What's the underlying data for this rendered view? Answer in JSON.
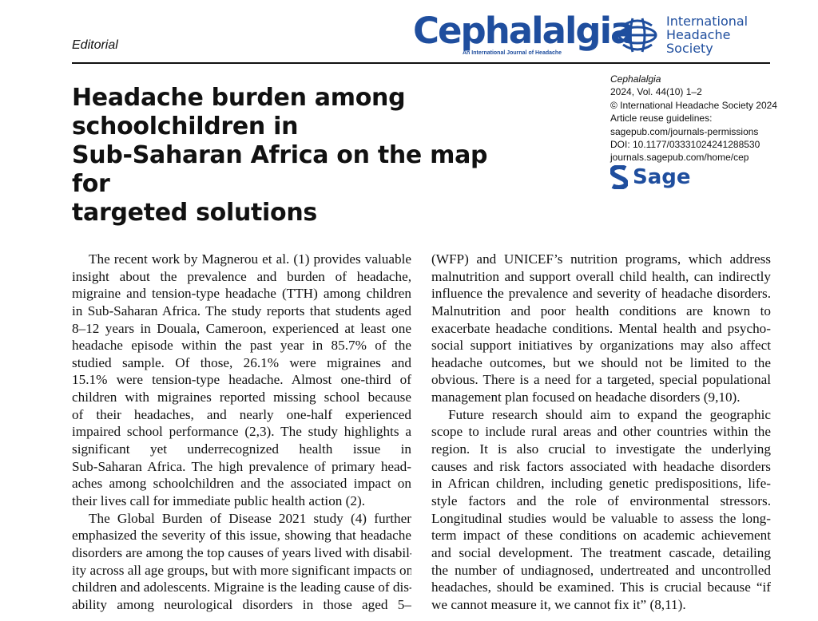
{
  "header": {
    "section": "Editorial",
    "journal_logo": "Cephalalgia",
    "journal_tagline": "An International Journal of Headache",
    "society_logo": "International Headache Society",
    "publisher_logo": "Sage",
    "brand_color": "#1f4e9e"
  },
  "title": [
    "Headache burden among schoolchildren in",
    "Sub-Saharan Africa on the map for",
    "targeted solutions"
  ],
  "meta": [
    "Cephalalgia",
    "2024, Vol. 44(10) 1–2",
    "© International Headache Society 2024",
    "Article reuse guidelines:",
    "sagepub.com/journals-permissions",
    "DOI: 10.1177/03331024241288530",
    "journals.sagepub.com/home/cep"
  ],
  "columns": [
    [
      [
        "The recent work by Magnerou et al. (1) provides valuable",
        "insight about the prevalence and burden of headache,",
        "migraine and tension-type headache (TTH) among children",
        "in Sub-Saharan Africa. The study reports that students aged",
        "8–12 years in Douala, Cameroon, experienced at least one",
        "headache episode within the past year in 85.7% of the",
        "studied sample. Of those, 26.1% were migraines and",
        "15.1% were tension-type headache. Almost one-third of",
        "children with migraines reported missing school because",
        "of their headaches, and nearly one-half experienced",
        "impaired school performance (2,3). The study highlights a",
        "significant yet underrecognized health issue in",
        "Sub-Saharan Africa. The high prevalence of primary head-",
        "aches among schoolchildren and the associated impact on",
        "their lives call for immediate public health action (2)."
      ],
      [
        "The Global Burden of Disease 2021 study (4) further",
        "emphasized the severity of this issue, showing that headache",
        "disorders are among the top causes of years lived with disabil-",
        "ity across all age groups, but with more significant impacts on",
        "children and adolescents. Migraine is the leading cause of dis-",
        "ability among neurological disorders in those aged 5–"
      ]
    ],
    [
      [
        "(WFP) and UNICEF’s nutrition programs, which address",
        "malnutrition and support overall child health, can indirectly",
        "influence the prevalence and severity of headache disorders.",
        "Malnutrition and poor health conditions are known to",
        "exacerbate headache conditions. Mental health and psycho-",
        "social support initiatives by organizations may also affect",
        "headache outcomes, but we should not be limited to the",
        "obvious. There is a need for a targeted, special populational",
        "management plan focused on headache disorders (9,10)."
      ],
      [
        "Future research should aim to expand the geographic",
        "scope to include rural areas and other countries within the",
        "region. It is also crucial to investigate the underlying",
        "causes and risk factors associated with headache disorders",
        "in African children, including genetic predispositions, life-",
        "style factors and the role of environmental stressors.",
        "Longitudinal studies would be valuable to assess the long-",
        "term impact of these conditions on academic achievement",
        "and social development. The treatment cascade, detailing",
        "the number of undiagnosed, undertreated and uncontrolled",
        "headaches, should be examined. This is crucial because “if",
        "we cannot measure it, we cannot fix it” (8,11)."
      ]
    ]
  ]
}
